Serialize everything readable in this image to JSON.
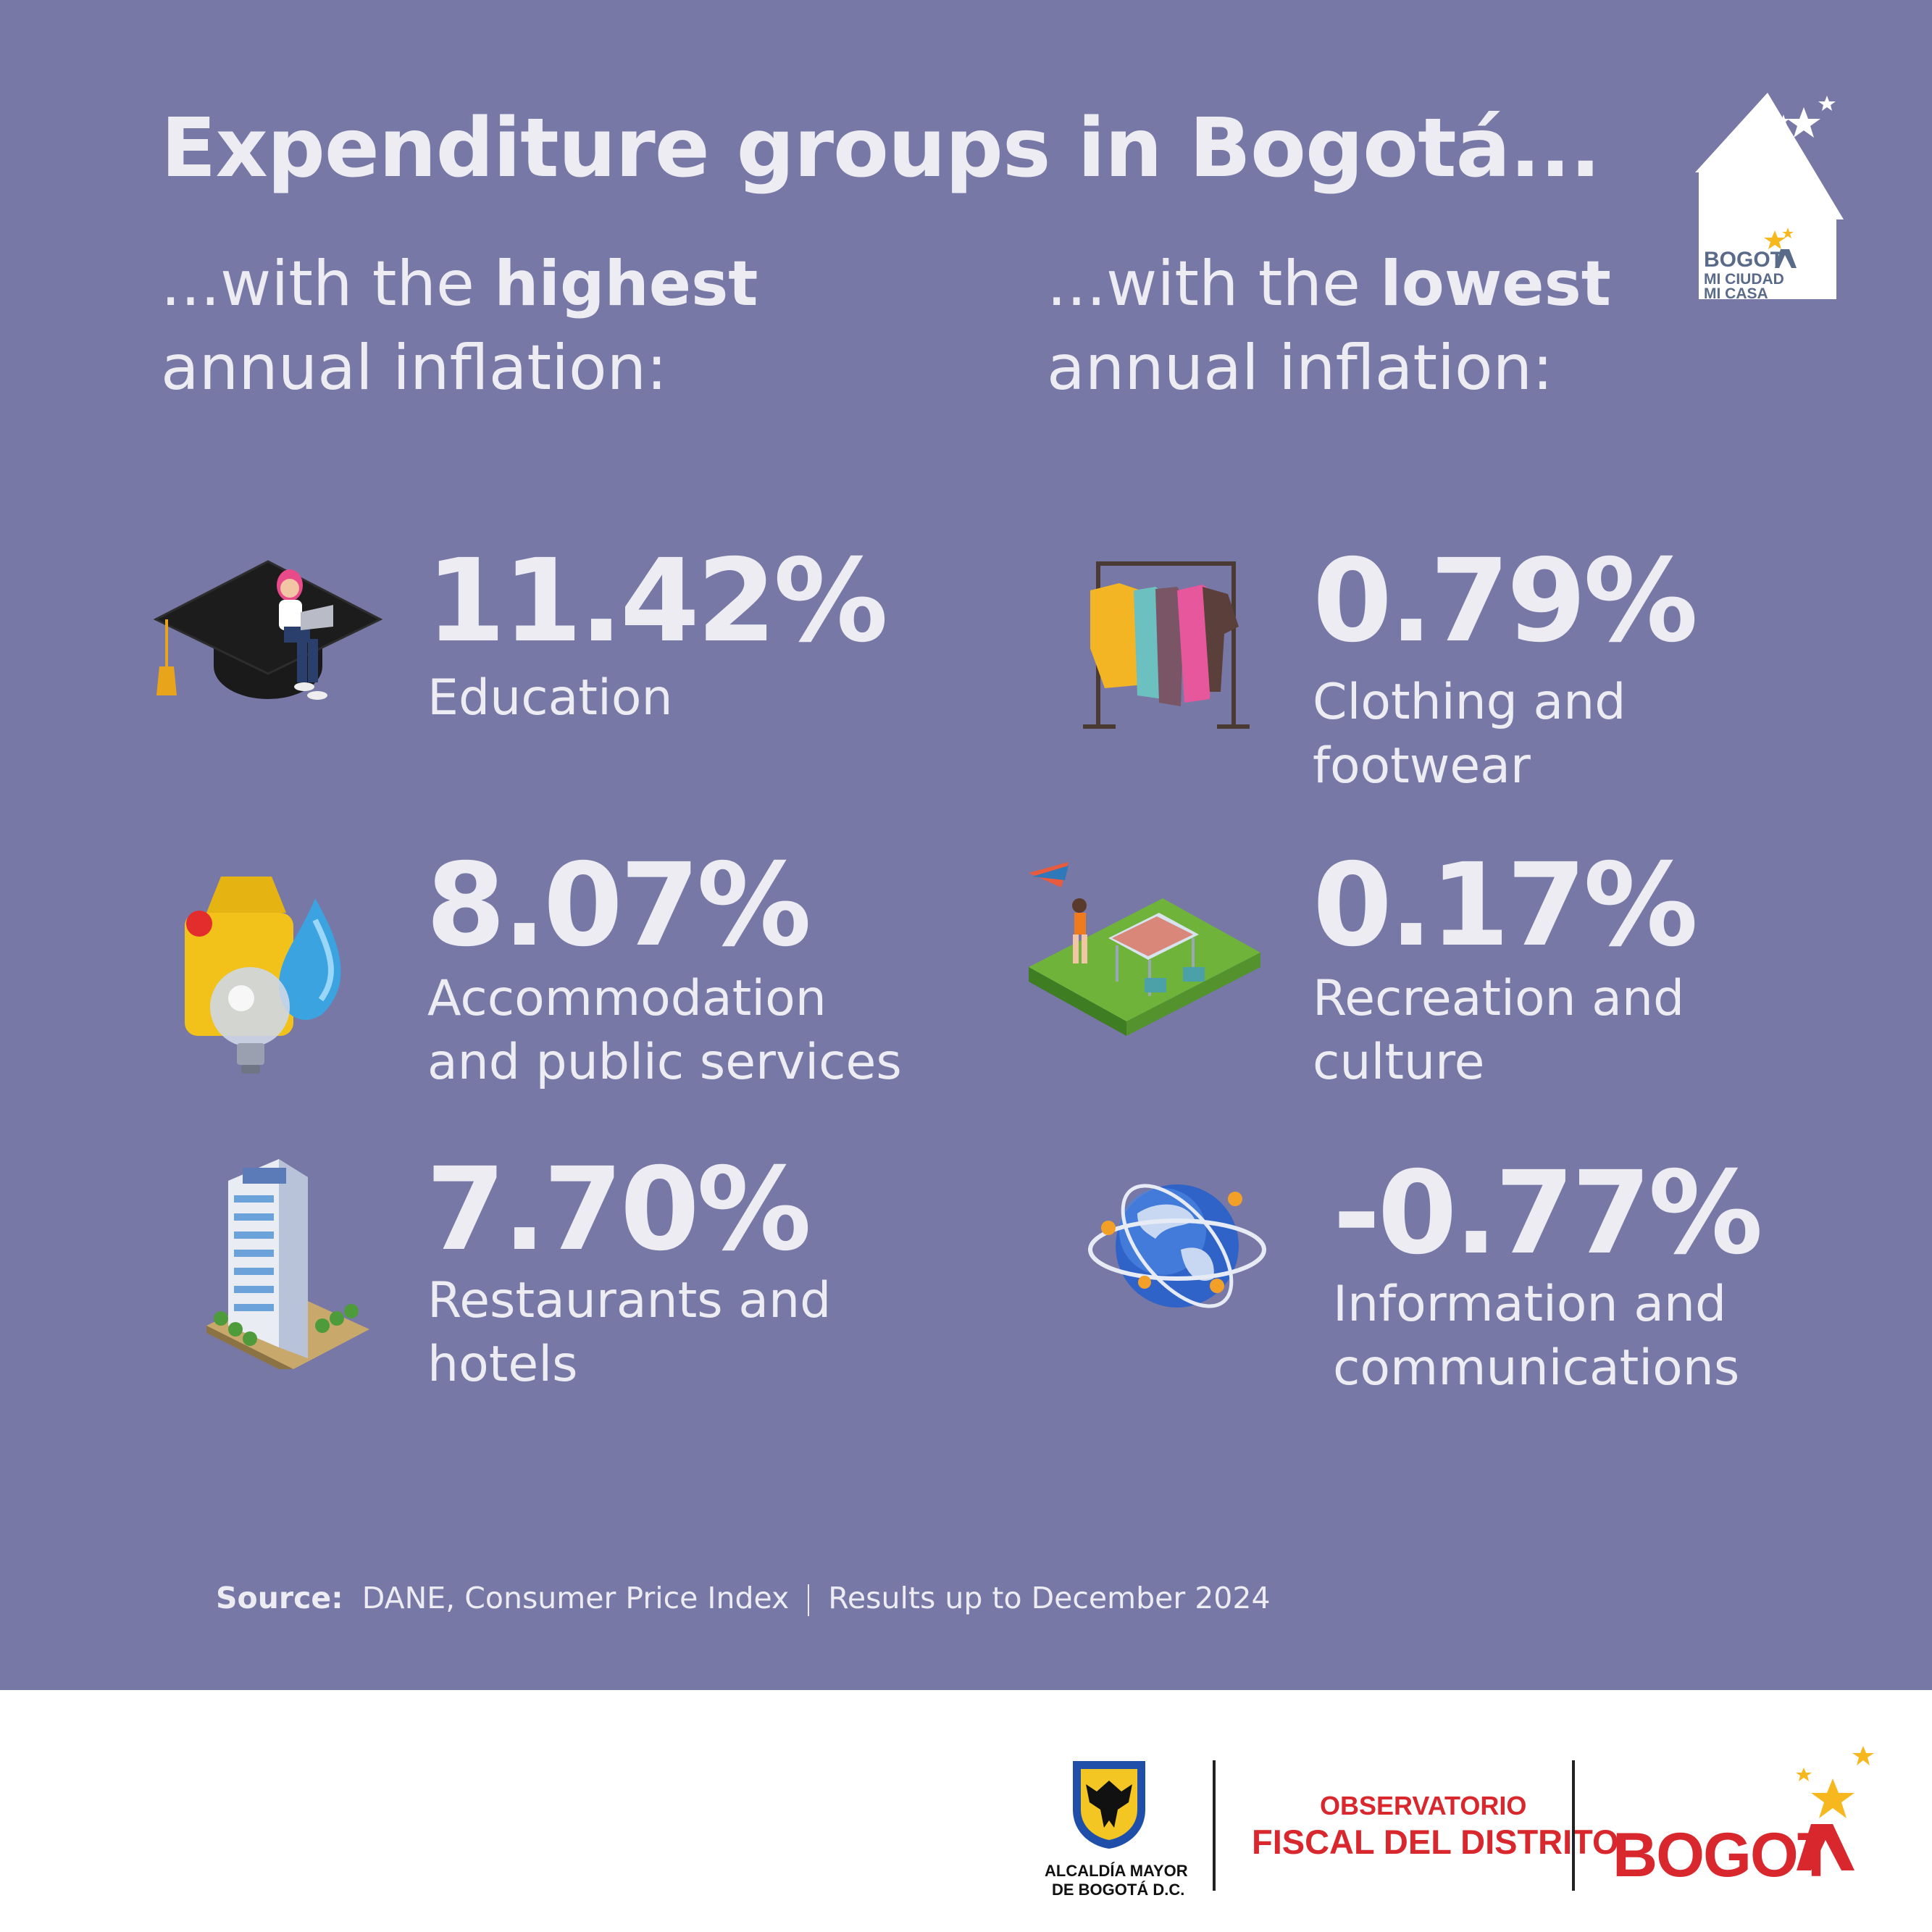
{
  "title": "Expenditure groups in Bogotá...",
  "left_heading": {
    "prefix": "...with the ",
    "emphasis": "highest",
    "line2": "annual inflation:"
  },
  "right_heading": {
    "prefix": "...with the ",
    "emphasis": "lowest",
    "line2": "annual inflation:"
  },
  "highest": [
    {
      "value": "11.42%",
      "label_line1": "Education",
      "label_line2": "",
      "icon": "graduation-cap-icon"
    },
    {
      "value": "8.07%",
      "label_line1": "Accommodation",
      "label_line2": "and public services",
      "icon": "utilities-icon"
    },
    {
      "value": "7.70%",
      "label_line1": "Restaurants and",
      "label_line2": "hotels",
      "icon": "hotel-building-icon"
    }
  ],
  "lowest": [
    {
      "value": "0.79%",
      "label_line1": "Clothing and",
      "label_line2": "footwear",
      "icon": "clothes-rack-icon"
    },
    {
      "value": "0.17%",
      "label_line1": "Recreation and",
      "label_line2": "culture",
      "icon": "park-picnic-icon"
    },
    {
      "value": "-0.77%",
      "label_line1": "Information and",
      "label_line2": "communications",
      "icon": "globe-network-icon"
    }
  ],
  "source": {
    "label": "Source:",
    "text": "DANE, Consumer Price Index",
    "note": "Results up to December 2024"
  },
  "logo_top": {
    "line1": "BOGOT",
    "line2": "MI CIUDAD",
    "line3": "MI CASA"
  },
  "footer": {
    "alcaldia_line1": "ALCALDÍA MAYOR",
    "alcaldia_line2": "DE BOGOTÁ D.C.",
    "observatorio_line1": "OBSERVATORIO",
    "observatorio_line2": "FISCAL DEL DISTRITO",
    "bogota": "BOGOT"
  },
  "colors": {
    "background": "#7878a6",
    "text": "#ececf2",
    "footer_red": "#d9272e",
    "star_yellow": "#f6b81e"
  }
}
